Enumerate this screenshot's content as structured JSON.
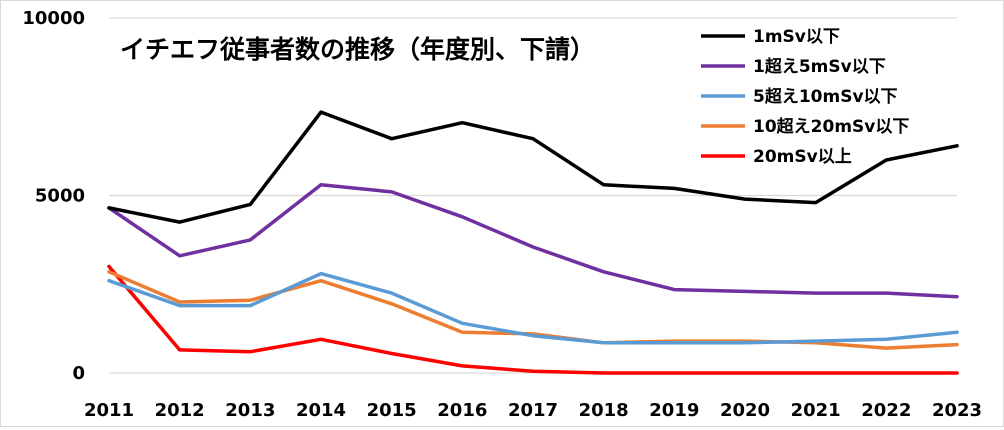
{
  "chart_data": {
    "type": "line",
    "title": "イチエフ従事者数の推移（年度別、下請）",
    "xlabel": "",
    "ylabel": "",
    "x": [
      "2011",
      "2012",
      "2013",
      "2014",
      "2015",
      "2016",
      "2017",
      "2018",
      "2019",
      "2020",
      "2021",
      "2022",
      "2023"
    ],
    "ylim": [
      0,
      10000
    ],
    "yticks": [
      "0",
      "5000",
      "10000"
    ],
    "grid": "horizontal",
    "legend_position": "top-right",
    "series": [
      {
        "name": "1mSv以下",
        "color": "#000000",
        "values": [
          4650,
          4250,
          4750,
          7350,
          6600,
          7050,
          6600,
          5300,
          5200,
          4900,
          4800,
          6000,
          6400
        ]
      },
      {
        "name": "1超え5mSv以下",
        "color": "#7030a0",
        "values": [
          4650,
          3300,
          3750,
          5300,
          5100,
          4400,
          3550,
          2850,
          2350,
          2300,
          2250,
          2250,
          2150
        ]
      },
      {
        "name": "5超え10mSv以下",
        "color": "#5b9bd5",
        "values": [
          2600,
          1900,
          1900,
          2800,
          2250,
          1400,
          1050,
          850,
          850,
          850,
          900,
          950,
          1150
        ]
      },
      {
        "name": "10超え20mSv以下",
        "color": "#ed7d31",
        "values": [
          2850,
          2000,
          2050,
          2600,
          1950,
          1150,
          1100,
          850,
          900,
          900,
          850,
          700,
          800
        ]
      },
      {
        "name": "20mSv以上",
        "color": "#ff0000",
        "values": [
          3000,
          650,
          600,
          950,
          550,
          200,
          50,
          0,
          0,
          0,
          0,
          0,
          0
        ]
      }
    ]
  }
}
